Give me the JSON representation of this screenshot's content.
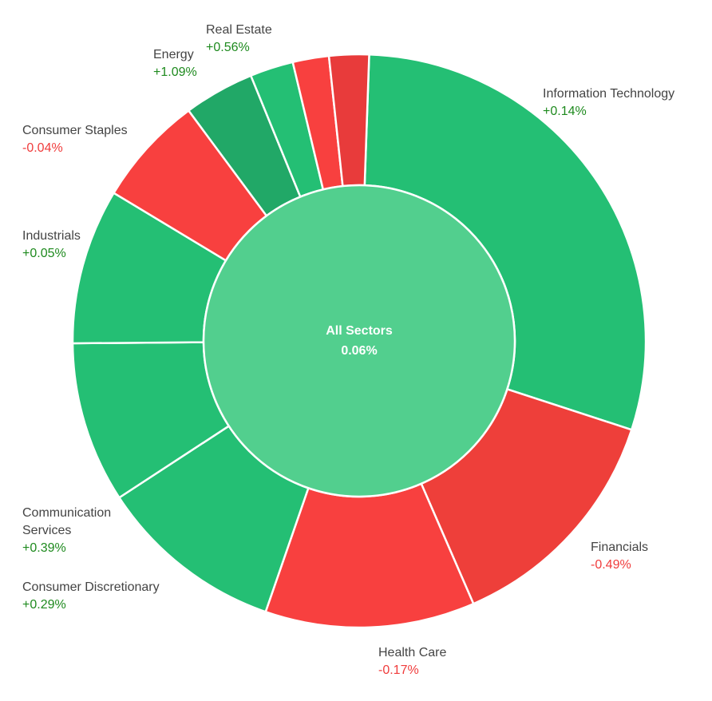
{
  "chart_data": {
    "type": "pie",
    "style": "sunburst-donut",
    "center": {
      "label": "All Sectors",
      "value": "0.06%",
      "color": "#52cf8e"
    },
    "colors": {
      "positive_text": "#1e8a1e",
      "negative_text": "#f03c3c"
    },
    "start_angle_deg": 2,
    "segments": [
      {
        "name": "Information Technology",
        "change": "+0.14%",
        "weight": 28.9,
        "color": "#24bf74"
      },
      {
        "name": "Financials",
        "change": "-0.49%",
        "weight": 13.2,
        "color": "#ee3f3a"
      },
      {
        "name": "Health Care",
        "change": "-0.17%",
        "weight": 11.6,
        "color": "#f8403f"
      },
      {
        "name": "Consumer Discretionary",
        "change": "+0.29%",
        "weight": 10.3,
        "color": "#24bf74"
      },
      {
        "name": "Communication Services",
        "change": "+0.39%",
        "weight": 8.9,
        "color": "#24bf74"
      },
      {
        "name": "Industrials",
        "change": "+0.05%",
        "weight": 8.6,
        "color": "#24bf74"
      },
      {
        "name": "Consumer Staples",
        "change": "-0.04%",
        "weight": 6.1,
        "color": "#f8403f"
      },
      {
        "name": "Energy",
        "change": "+1.09%",
        "weight": 3.9,
        "color": "#21a867"
      },
      {
        "name": "Real Estate",
        "change": "+0.56%",
        "weight": 2.4,
        "color": "#24bf74"
      },
      {
        "name": "",
        "change": "",
        "weight": 2.0,
        "color": "#f8403f"
      },
      {
        "name": "",
        "change": "",
        "weight": 2.2,
        "color": "#e83b3b"
      }
    ]
  }
}
